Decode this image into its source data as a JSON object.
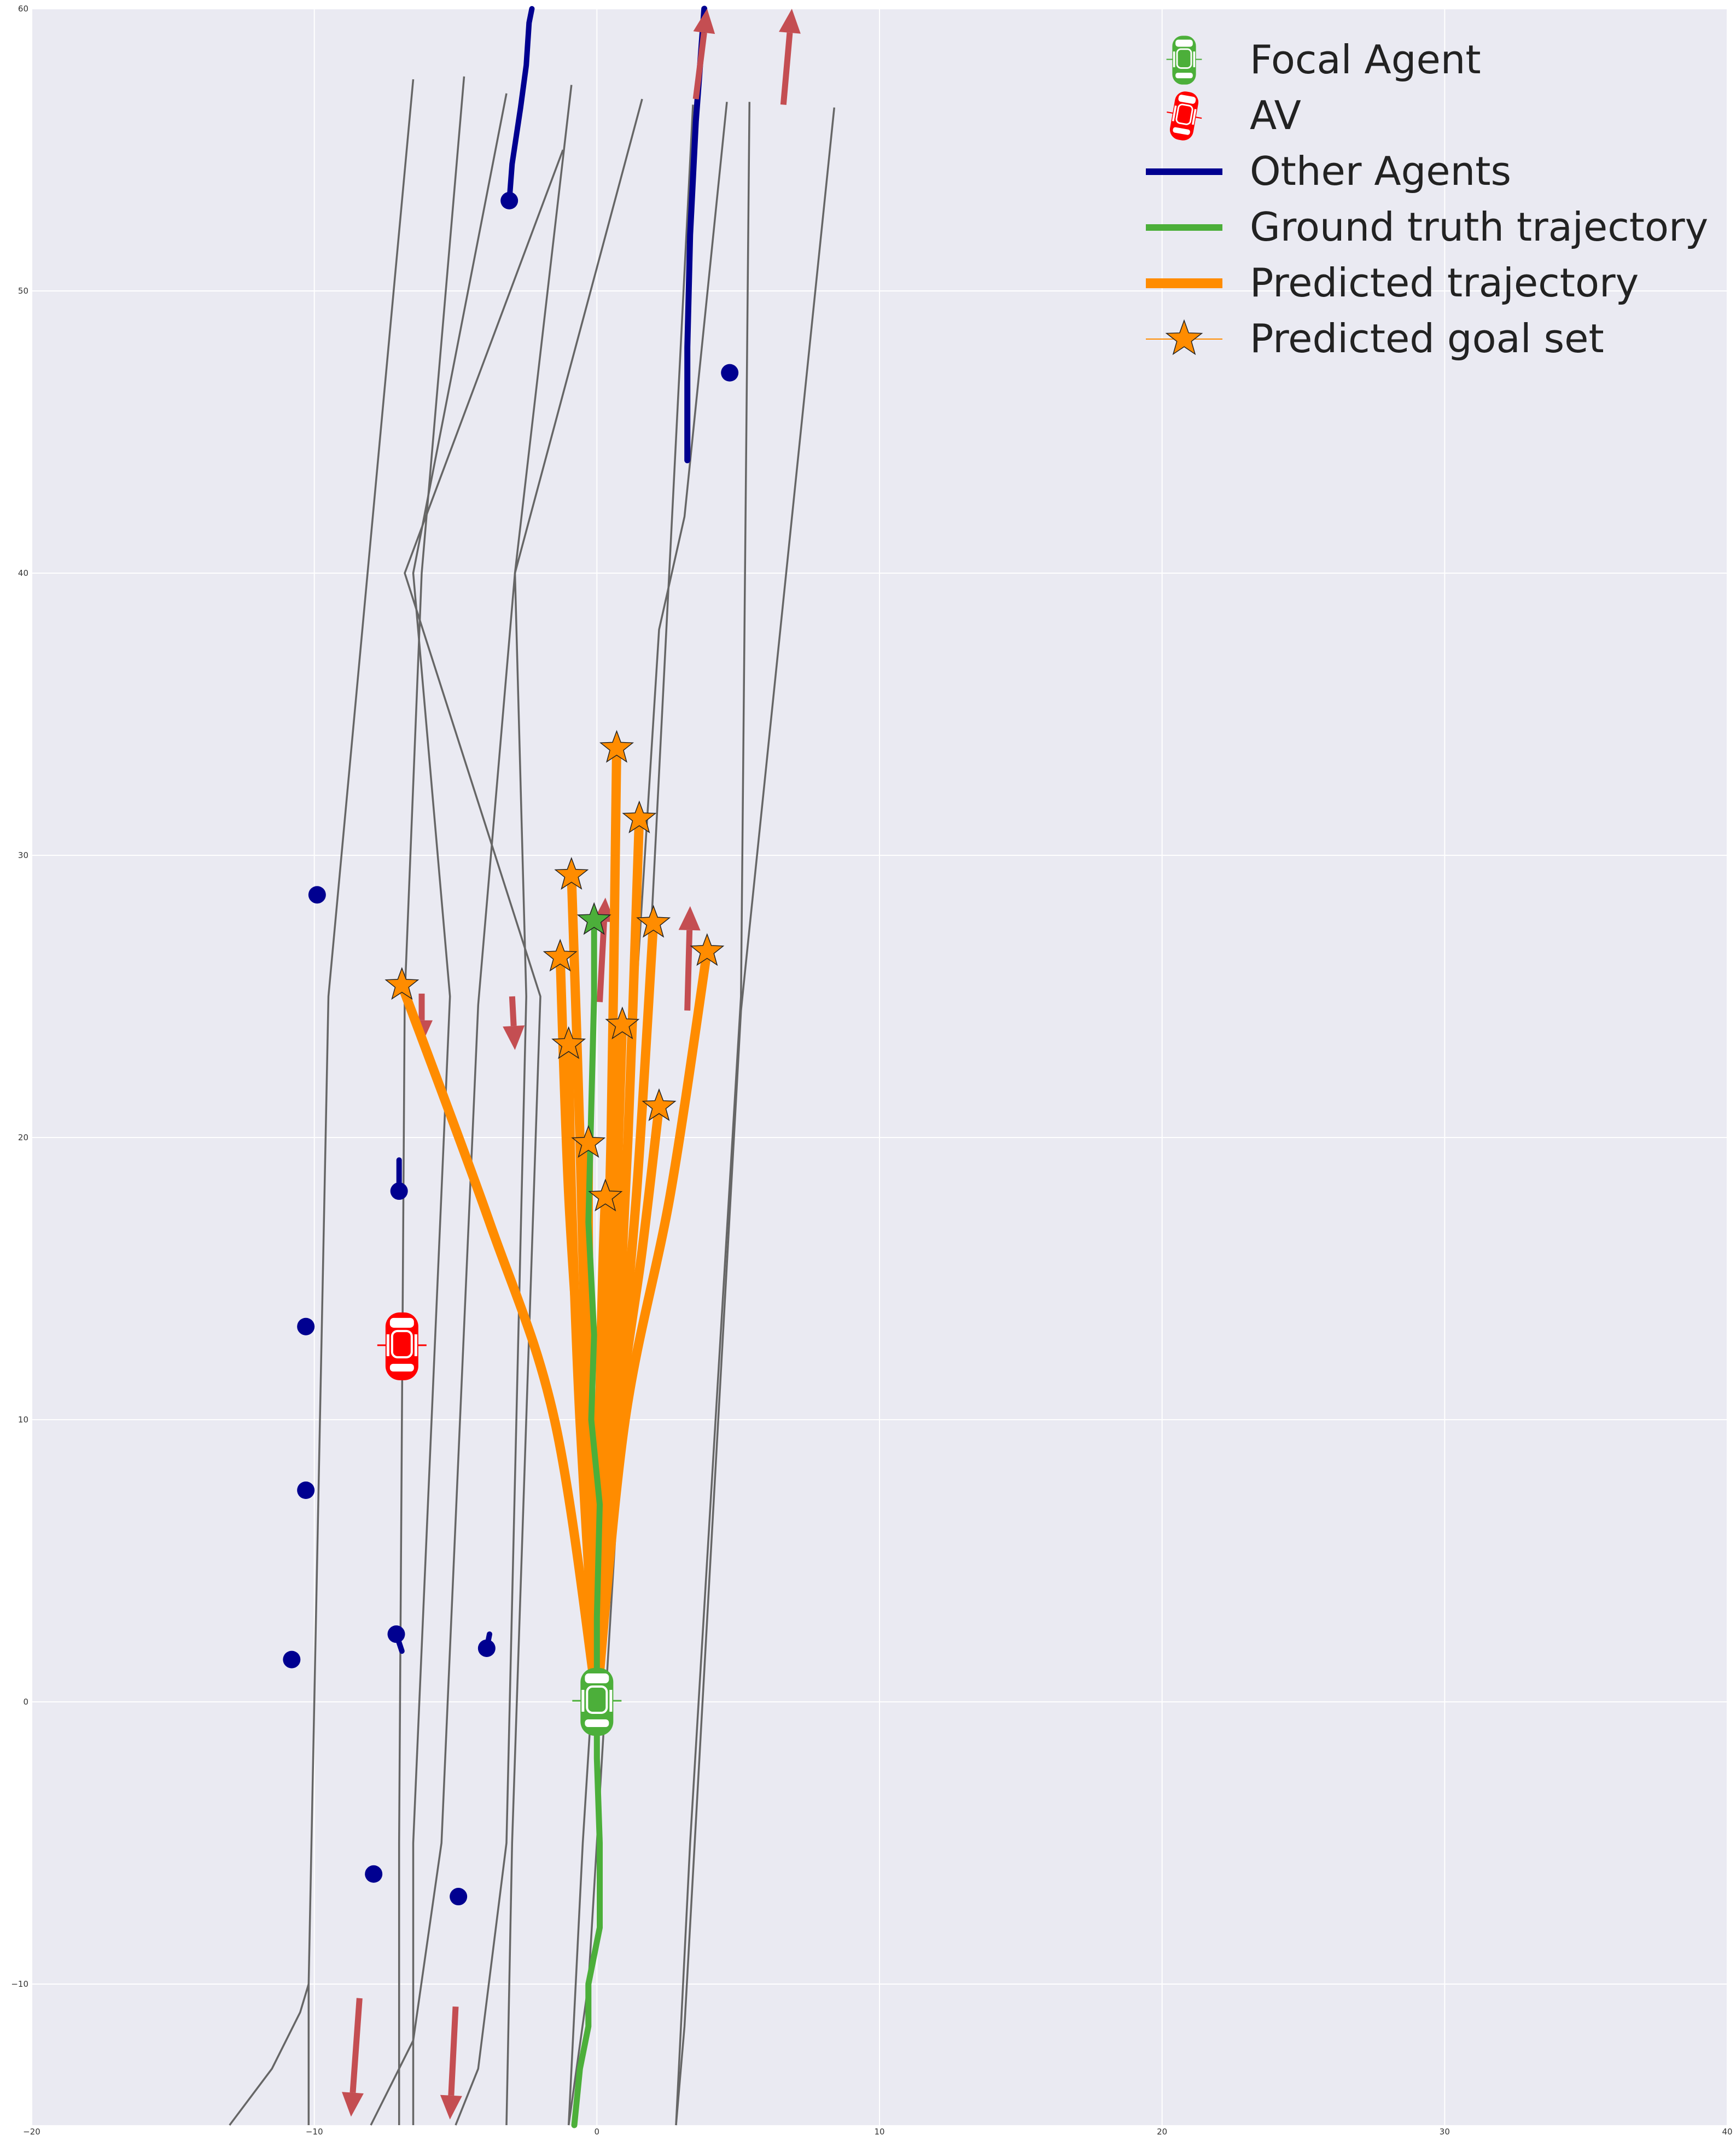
{
  "chart_data": {
    "type": "scatter",
    "xlim": [
      -20,
      40
    ],
    "ylim": [
      -15,
      60
    ],
    "xticks": [
      -20,
      -10,
      0,
      10,
      20,
      30,
      40
    ],
    "yticks": [
      -10,
      0,
      10,
      20,
      30,
      40,
      50,
      60
    ],
    "grid": true,
    "legend_placement": "top-right",
    "colors": {
      "background": "#eaeaf2",
      "grid": "#ffffff",
      "lane": "#666666",
      "focal": "#4caf3a",
      "av": "#ff0000",
      "other": "#000090",
      "pred": "#ff8c00",
      "arrow": "#c44e52"
    },
    "legend": [
      {
        "label": "Focal Agent",
        "kind": "car-green"
      },
      {
        "label": "AV",
        "kind": "car-red"
      },
      {
        "label": "Other Agents",
        "kind": "line-navy"
      },
      {
        "label": "Ground truth trajectory",
        "kind": "line-green"
      },
      {
        "label": "Predicted trajectory",
        "kind": "line-orange"
      },
      {
        "label": "Predicted goal set",
        "kind": "star-orange"
      }
    ],
    "lanes": [
      [
        [
          -10.2,
          -15
        ],
        [
          -10.2,
          -10
        ]
      ],
      [
        [
          -10.2,
          -10
        ],
        [
          -9.5,
          25
        ],
        [
          -6.5,
          57.5
        ]
      ],
      [
        [
          -13,
          -15
        ],
        [
          -11.5,
          -13
        ],
        [
          -10.5,
          -11
        ],
        [
          -10.2,
          -10
        ]
      ],
      [
        [
          -7,
          -15
        ],
        [
          -7,
          -5
        ],
        [
          -6.8,
          25
        ],
        [
          -6.2,
          40
        ],
        [
          -4.7,
          57.6
        ]
      ],
      [
        [
          -6.5,
          -15
        ],
        [
          -6.5,
          -5
        ],
        [
          -5.2,
          25
        ],
        [
          -6.5,
          40
        ],
        [
          -3.2,
          57
        ]
      ],
      [
        [
          -8,
          -15
        ],
        [
          -6.5,
          -12
        ],
        [
          -5.5,
          -5
        ],
        [
          -4.2,
          24.7
        ],
        [
          -2.9,
          40
        ],
        [
          -0.9,
          57.3
        ]
      ],
      [
        [
          -5,
          -15
        ],
        [
          -4.2,
          -13
        ],
        [
          -3.2,
          -5
        ],
        [
          -2.5,
          25
        ],
        [
          -2.9,
          40
        ],
        [
          1.6,
          56.8
        ]
      ],
      [
        [
          -3.2,
          -15
        ],
        [
          -3,
          -5
        ],
        [
          -2,
          25
        ],
        [
          -6.8,
          40
        ],
        [
          -1.2,
          55
        ]
      ],
      [
        [
          -1,
          -15
        ],
        [
          -0.5,
          -5
        ],
        [
          2.2,
          38
        ],
        [
          3.1,
          42
        ],
        [
          4.6,
          56.7
        ]
      ],
      [
        [
          2.8,
          -15
        ],
        [
          3.1,
          -11.5
        ],
        [
          5.1,
          24.5
        ],
        [
          8.4,
          56.5
        ]
      ],
      [
        [
          2.8,
          -15
        ],
        [
          3.3,
          -5
        ],
        [
          5.1,
          25
        ],
        [
          5.4,
          56.7
        ]
      ],
      [
        [
          -1,
          -15
        ],
        [
          -0.3,
          -10
        ],
        [
          1.8,
          25
        ],
        [
          3.4,
          56.6
        ]
      ]
    ],
    "other_agents": [
      {
        "x": -3.1,
        "y": 53.2,
        "trail": [
          [
            -3.1,
            53.2
          ],
          [
            -3.0,
            54.5
          ],
          [
            -2.7,
            56.5
          ],
          [
            -2.5,
            58
          ],
          [
            -2.4,
            59.5
          ],
          [
            -2.3,
            60
          ]
        ]
      },
      {
        "x": 4.7,
        "y": 47.1,
        "trail": []
      },
      {
        "x": -9.9,
        "y": 28.6,
        "trail": []
      },
      {
        "x": -7.0,
        "y": 18.1,
        "trail": [
          [
            -7.0,
            18.1
          ],
          [
            -7.0,
            19.2
          ]
        ]
      },
      {
        "x": -10.3,
        "y": 13.3,
        "trail": []
      },
      {
        "x": -10.3,
        "y": 7.5,
        "trail": []
      },
      {
        "x": -7.1,
        "y": 2.4,
        "trail": [
          [
            -7.1,
            2.4
          ],
          [
            -6.9,
            1.8
          ]
        ]
      },
      {
        "x": -10.8,
        "y": 1.5,
        "trail": []
      },
      {
        "x": -3.9,
        "y": 1.9,
        "trail": [
          [
            -3.9,
            1.9
          ],
          [
            -3.8,
            2.4
          ]
        ]
      },
      {
        "x": -7.9,
        "y": -6.1,
        "trail": []
      },
      {
        "x": -4.9,
        "y": -6.9,
        "trail": []
      }
    ],
    "other_trails_unmarked": [
      [
        [
          3.2,
          44
        ],
        [
          3.2,
          48
        ],
        [
          3.3,
          52
        ],
        [
          3.5,
          56
        ],
        [
          3.8,
          60
        ]
      ]
    ],
    "ground_truth": [
      [
        -0.8,
        -15
      ],
      [
        -0.6,
        -13
      ],
      [
        -0.3,
        -11.5
      ],
      [
        -0.3,
        -10
      ],
      [
        0.1,
        -8
      ],
      [
        0.1,
        -5
      ],
      [
        0.0,
        -2
      ],
      [
        0.0,
        0
      ],
      [
        0.0,
        3
      ],
      [
        0.1,
        7
      ],
      [
        -0.2,
        10
      ],
      [
        -0.1,
        13
      ],
      [
        -0.3,
        17
      ],
      [
        -0.2,
        21
      ],
      [
        -0.1,
        25
      ],
      [
        -0.1,
        27.7
      ]
    ],
    "predicted": [
      [
        [
          0,
          0
        ],
        [
          -1.5,
          10
        ],
        [
          -3.8,
          17
        ],
        [
          -6.9,
          25.4
        ]
      ],
      [
        [
          0,
          0
        ],
        [
          -0.5,
          10
        ],
        [
          -1.0,
          18
        ],
        [
          -1.3,
          26.4
        ]
      ],
      [
        [
          0,
          0
        ],
        [
          -0.6,
          10
        ],
        [
          -0.9,
          18
        ],
        [
          -1.0,
          23.3
        ]
      ],
      [
        [
          0,
          0
        ],
        [
          -0.4,
          12
        ],
        [
          -0.6,
          20
        ],
        [
          -0.9,
          29.3
        ]
      ],
      [
        [
          0,
          0
        ],
        [
          -0.2,
          10
        ],
        [
          -0.3,
          16
        ],
        [
          -0.3,
          19.8
        ]
      ],
      [
        [
          0,
          0
        ],
        [
          0.1,
          10
        ],
        [
          0.2,
          15
        ],
        [
          0.3,
          17.9
        ]
      ],
      [
        [
          0,
          0
        ],
        [
          0.2,
          10
        ],
        [
          0.5,
          20
        ],
        [
          0.7,
          33.8
        ]
      ],
      [
        [
          0,
          0
        ],
        [
          0.4,
          10
        ],
        [
          0.7,
          18
        ],
        [
          0.9,
          24.0
        ]
      ],
      [
        [
          0,
          0
        ],
        [
          0.6,
          10
        ],
        [
          1.1,
          20
        ],
        [
          1.5,
          31.3
        ]
      ],
      [
        [
          0,
          0
        ],
        [
          0.7,
          10
        ],
        [
          1.4,
          18
        ],
        [
          2.0,
          27.6
        ]
      ],
      [
        [
          0,
          0
        ],
        [
          0.8,
          10
        ],
        [
          1.6,
          16
        ],
        [
          2.2,
          21.1
        ]
      ],
      [
        [
          0,
          0
        ],
        [
          1.0,
          10
        ],
        [
          2.6,
          18
        ],
        [
          3.9,
          26.6
        ]
      ]
    ],
    "goals": [
      [
        -6.9,
        25.4
      ],
      [
        -1.3,
        26.4
      ],
      [
        -1.0,
        23.3
      ],
      [
        -0.9,
        29.3
      ],
      [
        -0.3,
        19.8
      ],
      [
        0.3,
        17.9
      ],
      [
        0.7,
        33.8
      ],
      [
        0.9,
        24.0
      ],
      [
        1.5,
        31.3
      ],
      [
        2.0,
        27.6
      ],
      [
        2.2,
        21.1
      ],
      [
        3.9,
        26.6
      ]
    ],
    "gt_goal": [
      -0.1,
      27.7
    ],
    "arrows": [
      [
        [
          3.5,
          56.8
        ],
        [
          3.9,
          60
        ]
      ],
      [
        [
          6.6,
          56.6
        ],
        [
          6.9,
          60
        ]
      ],
      [
        [
          3.2,
          24.5
        ],
        [
          3.3,
          28.2
        ]
      ],
      [
        [
          0.1,
          24.8
        ],
        [
          0.3,
          28.5
        ]
      ],
      [
        [
          -6.2,
          25.1
        ],
        [
          -6.2,
          23.3
        ]
      ],
      [
        [
          -3.0,
          25.0
        ],
        [
          -2.9,
          23.1
        ]
      ],
      [
        [
          -8.4,
          -10.5
        ],
        [
          -8.7,
          -14.7
        ]
      ],
      [
        [
          -5.0,
          -10.8
        ],
        [
          -5.2,
          -14.8
        ]
      ]
    ],
    "focal_pos": [
      0,
      0
    ],
    "av_pos": [
      -6.9,
      12.6
    ]
  }
}
